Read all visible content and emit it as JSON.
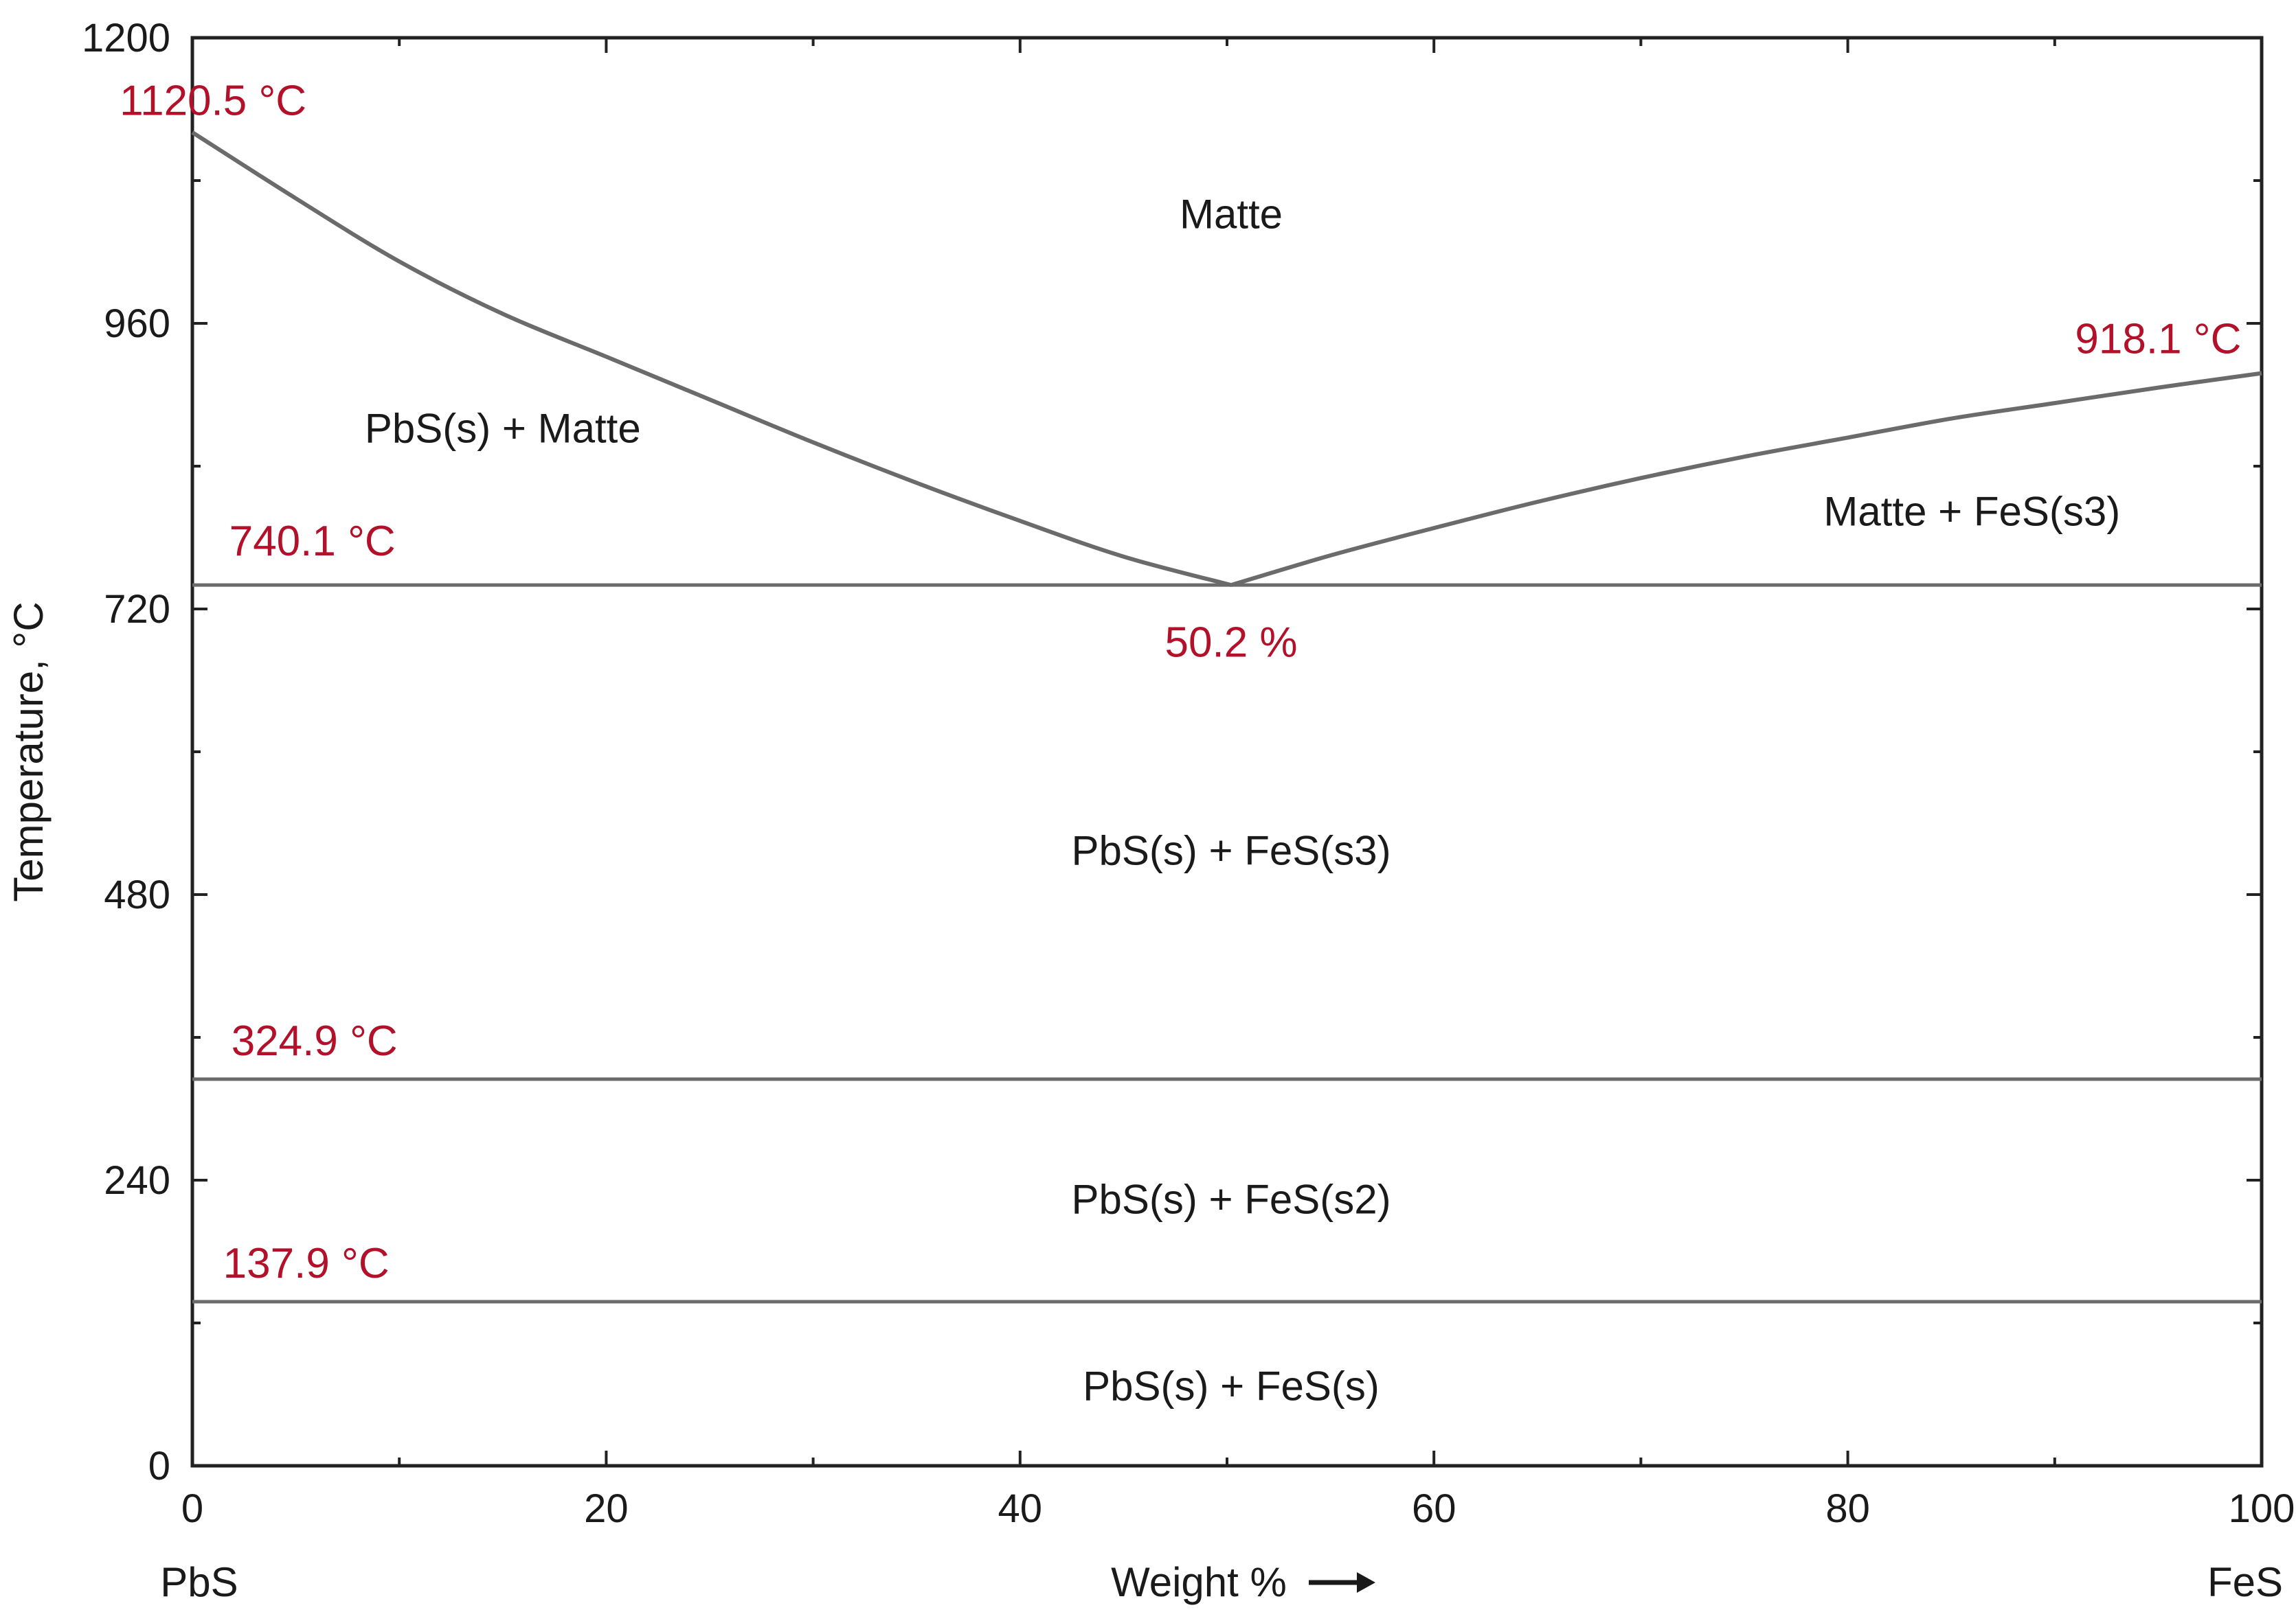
{
  "chart_data": {
    "type": "line",
    "xlabel": "Weight %",
    "ylabel": "Temperature, °C",
    "xlim": [
      0,
      100
    ],
    "ylim": [
      0,
      1200
    ],
    "x_ticks": [
      0,
      20,
      40,
      60,
      80,
      100
    ],
    "y_ticks": [
      0,
      240,
      480,
      720,
      960,
      1200
    ],
    "x_tick_labels": [
      "0",
      "20",
      "40",
      "60",
      "80",
      "100"
    ],
    "y_tick_labels": [
      "0",
      "240",
      "480",
      "720",
      "960",
      "1200"
    ],
    "left_component": "PbS",
    "right_component": "FeS",
    "grid": false,
    "liquidus_left": {
      "x": [
        0,
        5,
        10,
        15,
        20,
        25,
        30,
        35,
        40,
        45,
        50.2
      ],
      "y": [
        1120.5,
        1065,
        1012,
        968,
        932,
        896,
        860,
        826,
        794,
        764,
        740.1
      ]
    },
    "liquidus_right": {
      "x": [
        50.2,
        55,
        60,
        65,
        70,
        75,
        80,
        85,
        90,
        95,
        100
      ],
      "y": [
        740.1,
        765,
        788,
        810,
        830,
        848,
        864,
        880,
        893,
        906,
        918.1
      ]
    },
    "isotherms": [
      740.1,
      324.9,
      137.9
    ],
    "annotations": [
      {
        "text": "1120.5 °C",
        "x": 1,
        "y": 1135
      },
      {
        "text": "918.1 °C",
        "x": 95,
        "y": 935
      },
      {
        "text": "740.1 °C",
        "x": 5.8,
        "y": 765
      },
      {
        "text": "50.2 %",
        "x": 50.2,
        "y": 680
      },
      {
        "text": "324.9 °C",
        "x": 5.9,
        "y": 345
      },
      {
        "text": "137.9 °C",
        "x": 5.5,
        "y": 158
      }
    ],
    "regions": [
      {
        "text": "Matte",
        "x": 50.2,
        "y": 1040
      },
      {
        "text": "PbS(s) + Matte",
        "x": 15,
        "y": 860
      },
      {
        "text": "Matte + FeS(s3)",
        "x": 86,
        "y": 790
      },
      {
        "text": "PbS(s) + FeS(s3)",
        "x": 50.2,
        "y": 505
      },
      {
        "text": "PbS(s) + FeS(s2)",
        "x": 50.2,
        "y": 212
      },
      {
        "text": "PbS(s) + FeS(s)",
        "x": 50.2,
        "y": 55
      }
    ]
  }
}
